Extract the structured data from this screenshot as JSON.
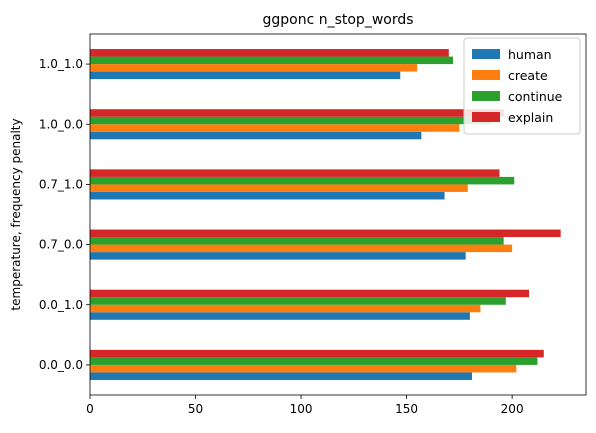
{
  "chart_data": {
    "type": "bar",
    "orientation": "horizontal",
    "title": "ggponc n_stop_words",
    "xlabel": "",
    "ylabel": "temperature, frequency penalty",
    "categories": [
      "0.0_0.0",
      "0.0_1.0",
      "0.7_0.0",
      "0.7_1.0",
      "1.0_0.0",
      "1.0_1.0"
    ],
    "xlim": [
      0,
      235
    ],
    "xticks": [
      0,
      50,
      100,
      150,
      200
    ],
    "grid": false,
    "legend_position": "top-right",
    "series": [
      {
        "name": "human",
        "color": "#1f77b4",
        "values": [
          181,
          180,
          178,
          168,
          157,
          147
        ]
      },
      {
        "name": "create",
        "color": "#ff7f0e",
        "values": [
          202,
          185,
          200,
          179,
          175,
          155
        ]
      },
      {
        "name": "continue",
        "color": "#2ca02c",
        "values": [
          212,
          197,
          196,
          201,
          190,
          172
        ]
      },
      {
        "name": "explain",
        "color": "#d62728",
        "values": [
          215,
          208,
          223,
          194,
          196,
          170
        ]
      }
    ]
  }
}
